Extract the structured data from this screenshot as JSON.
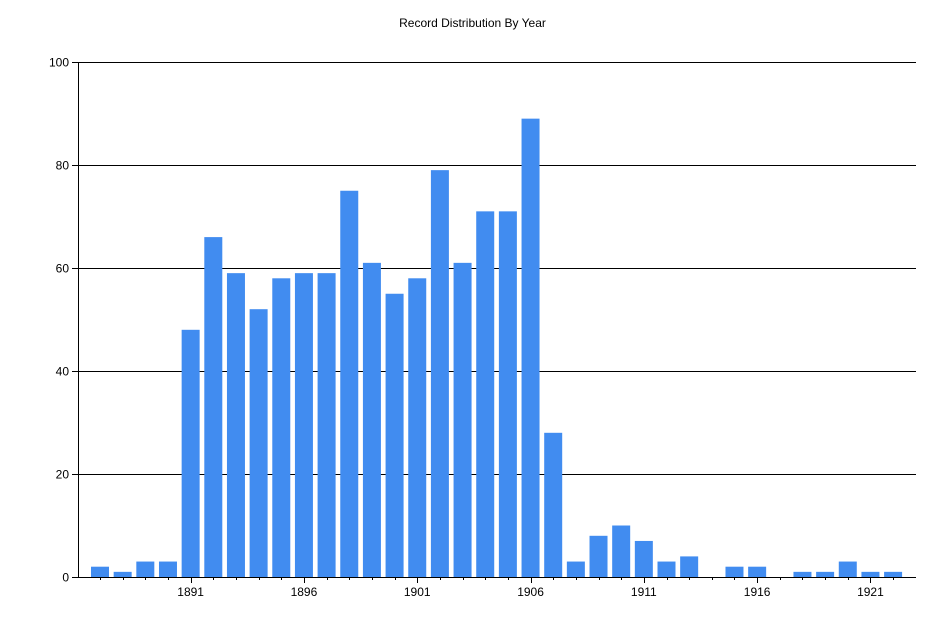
{
  "chart_data": {
    "type": "bar",
    "title": "Record Distribution By Year",
    "xlabel": "",
    "ylabel": "",
    "x": [
      1887,
      1888,
      1889,
      1890,
      1891,
      1892,
      1893,
      1894,
      1895,
      1896,
      1897,
      1898,
      1899,
      1900,
      1901,
      1902,
      1903,
      1904,
      1905,
      1906,
      1907,
      1908,
      1909,
      1910,
      1911,
      1912,
      1913,
      1914,
      1915,
      1916,
      1917,
      1918,
      1919,
      1920,
      1921,
      1922
    ],
    "values": [
      2,
      1,
      3,
      3,
      48,
      66,
      59,
      52,
      58,
      59,
      59,
      75,
      61,
      55,
      58,
      79,
      61,
      71,
      71,
      89,
      28,
      3,
      8,
      10,
      7,
      3,
      4,
      0,
      2,
      2,
      0,
      1,
      1,
      3,
      1,
      1
    ],
    "xticks": [
      1891,
      1896,
      1901,
      1906,
      1911,
      1916,
      1921
    ],
    "yticks": [
      0,
      20,
      40,
      60,
      80,
      100
    ],
    "ylim": [
      0,
      100
    ],
    "grid": "horizontal",
    "legend": "none",
    "colors": {
      "bar": "#418CF0",
      "grid": "#000000",
      "axis": "#000000",
      "background": "#FFFFFF"
    }
  }
}
